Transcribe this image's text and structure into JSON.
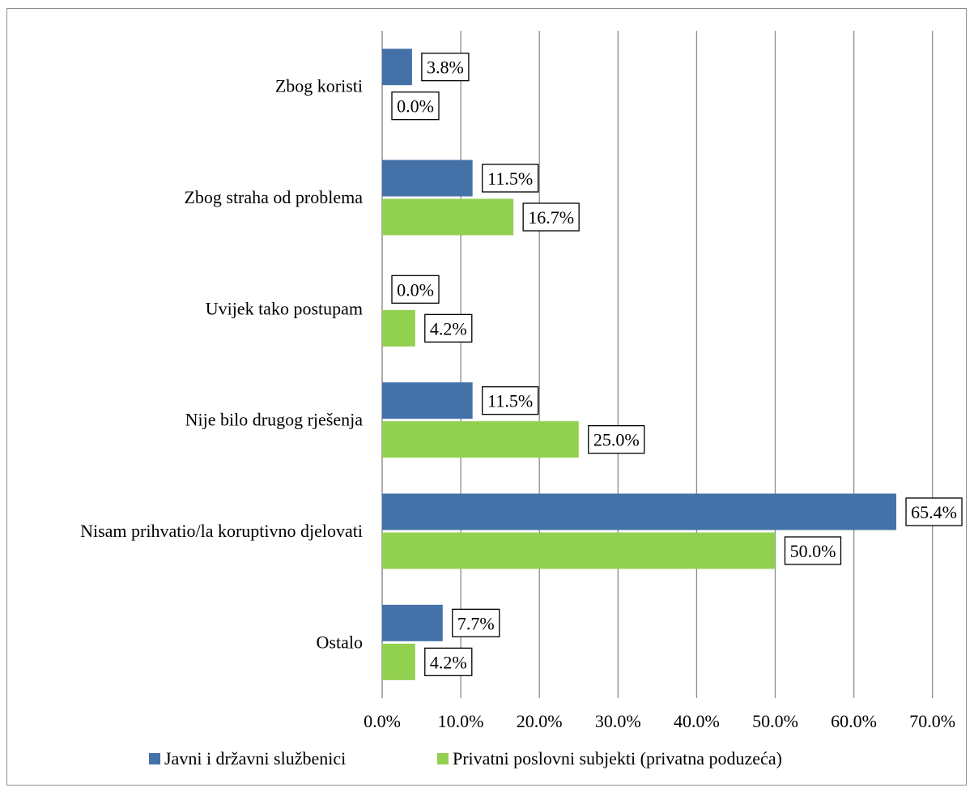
{
  "chart_data": {
    "type": "bar",
    "orientation": "horizontal",
    "categories": [
      "Zbog koristi",
      "Zbog straha od problema",
      "Uvijek tako postupam",
      "Nije bilo drugog rješenja",
      "Nisam prihvatio/la koruptivno djelovati",
      "Ostalo"
    ],
    "series": [
      {
        "name": "Javni i državni službenici",
        "color": "#4472a8",
        "values": [
          3.8,
          11.5,
          0.0,
          11.5,
          65.4,
          7.7
        ],
        "labels": [
          "3.8%",
          "11.5%",
          "0.0%",
          "11.5%",
          "65.4%",
          "7.7%"
        ]
      },
      {
        "name": "Privatni poslovni subjekti (privatna poduzeća)",
        "color": "#92d050",
        "values": [
          0.0,
          16.7,
          4.2,
          25.0,
          50.0,
          4.2
        ],
        "labels": [
          "0.0%",
          "16.7%",
          "4.2%",
          "25.0%",
          "50.0%",
          "4.2%"
        ]
      }
    ],
    "xlim": [
      0,
      70
    ],
    "xticks": [
      0,
      10,
      20,
      30,
      40,
      50,
      60,
      70
    ],
    "xtick_labels": [
      "0.0%",
      "10.0%",
      "20.0%",
      "30.0%",
      "40.0%",
      "50.0%",
      "60.0%",
      "70.0%"
    ],
    "grid": "vertical",
    "legend": "bottom",
    "title": "",
    "xlabel": "",
    "ylabel": ""
  }
}
